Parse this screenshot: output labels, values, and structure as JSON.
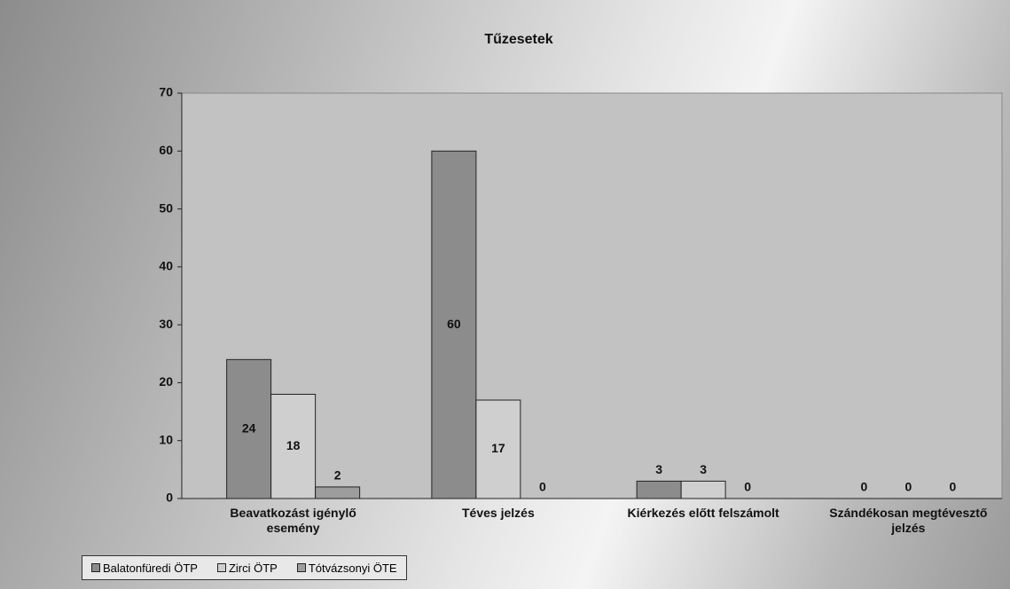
{
  "chart_data": {
    "type": "bar",
    "title": "Tűzesetek",
    "categories": [
      "Beavatkozást igénylő esemény",
      "Téves jelzés",
      "Kiérkezés előtt felszámolt",
      "Szándékosan megtévesztő jelzés"
    ],
    "series": [
      {
        "name": "Balatonfüredi ÖTP",
        "color": "#8c8c8c",
        "values": [
          24,
          60,
          3,
          0
        ]
      },
      {
        "name": "Zirci ÖTP",
        "color": "#cfcfcf",
        "values": [
          18,
          17,
          3,
          0
        ]
      },
      {
        "name": "Tótvázsonyi ÖTE",
        "color": "#9d9d9d",
        "values": [
          2,
          0,
          0,
          0
        ]
      }
    ],
    "ylim": [
      0,
      70
    ],
    "yticks": [
      0,
      10,
      20,
      30,
      40,
      50,
      60,
      70
    ],
    "legend": "bottom-left"
  }
}
